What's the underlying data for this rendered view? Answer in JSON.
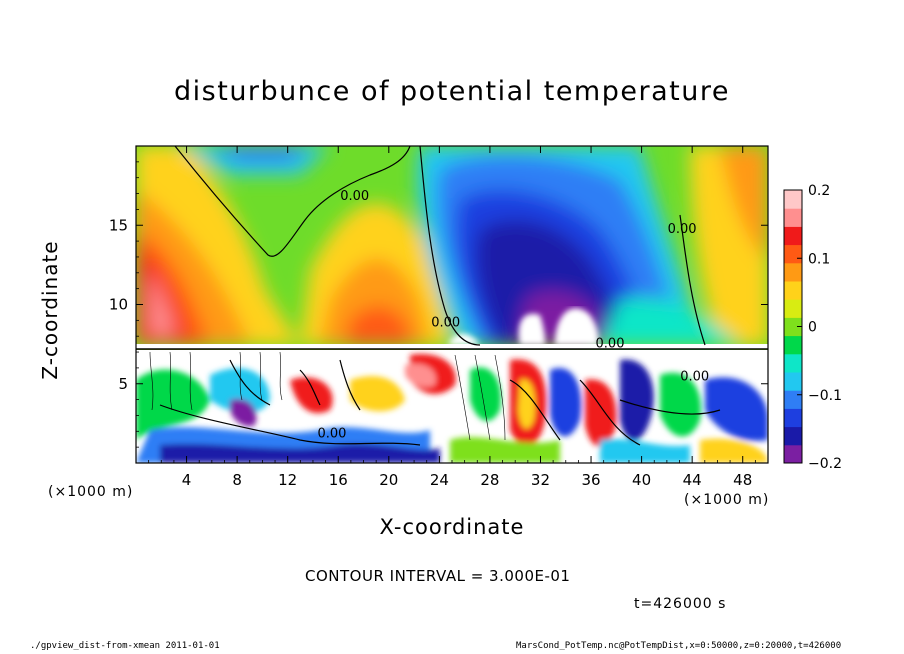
{
  "chart_data": {
    "type": "heatmap",
    "title": "disturbunce of potential temperature",
    "xlabel": "X-coordinate",
    "ylabel": "Z-coordinate",
    "x_unit_left": "(×1000 m)",
    "x_unit_right": "(×1000 m)",
    "xlim": [
      0,
      50
    ],
    "ylim": [
      0,
      20
    ],
    "x_ticks": [
      4,
      8,
      12,
      16,
      20,
      24,
      28,
      32,
      36,
      40,
      44,
      48
    ],
    "y_ticks": [
      5,
      10,
      15
    ],
    "colorbar": {
      "range": [
        -0.2,
        0.2
      ],
      "ticks": [
        {
          "value": 0.2,
          "label": "0.2"
        },
        {
          "value": 0.1,
          "label": "0.1"
        },
        {
          "value": 0,
          "label": "0"
        },
        {
          "value": -0.1,
          "label": "−0.1"
        },
        {
          "value": -0.2,
          "label": "−0.2"
        }
      ],
      "colors": [
        "#7b1fa2",
        "#1a1aa8",
        "#1e3fe0",
        "#2f7ef5",
        "#22c8f0",
        "#0ee6c8",
        "#00d84a",
        "#7ee01c",
        "#d8ec12",
        "#ffd21a",
        "#ff9a14",
        "#ff5a14",
        "#f01a1a",
        "#ff8f8f",
        "#ffc8c8"
      ]
    },
    "contour_labels": [
      {
        "x": 17.3,
        "y": 16.6,
        "text": "0.00"
      },
      {
        "x": 24.5,
        "y": 8.6,
        "text": "0.00"
      },
      {
        "x": 43.2,
        "y": 14.5,
        "text": "0.00"
      },
      {
        "x": 15.5,
        "y": 1.6,
        "text": "0.00"
      },
      {
        "x": 44.2,
        "y": 5.2,
        "text": "0.00"
      },
      {
        "x": 37.5,
        "y": 7.3,
        "text": "0.00"
      }
    ]
  },
  "footer": {
    "contour_interval": "CONTOUR INTERVAL = 3.000E-01",
    "time": "t=426000 s",
    "script": "./gpview_dist-from-xmean   2011-01-01",
    "source": "MarsCond_PotTemp.nc@PotTempDist,x=0:50000,z=0:20000,t=426000"
  }
}
